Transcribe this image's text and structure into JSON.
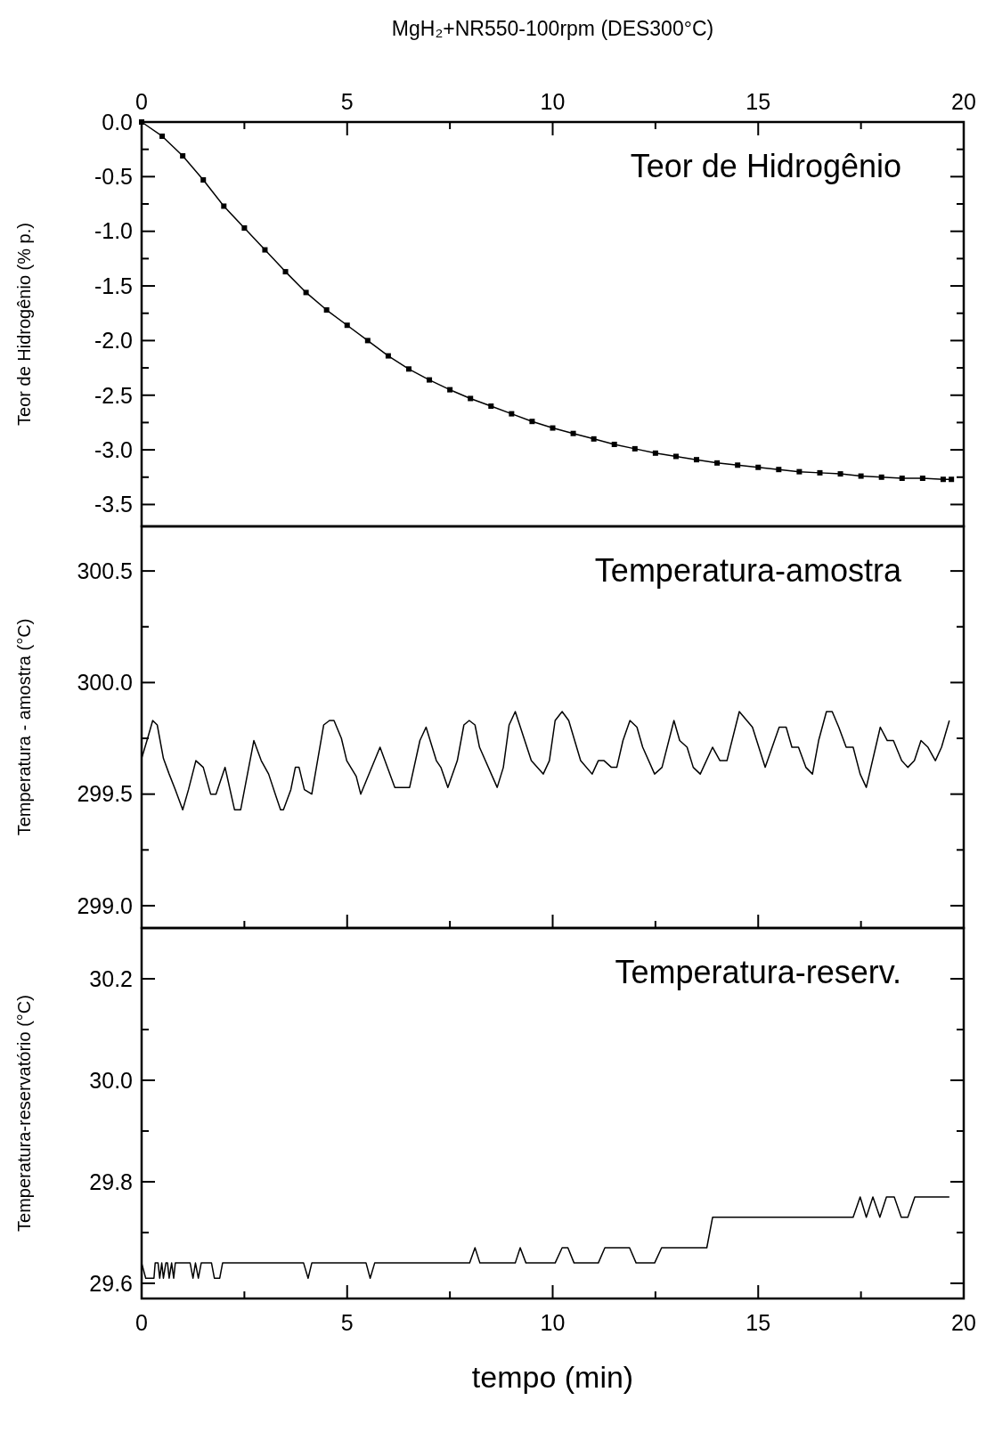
{
  "chart_data": [
    {
      "type": "line",
      "title": "MgH₂+NR550-100rpm (DES300°C)",
      "ylabel": "Teor de Hidrogênio (% p.)",
      "annotations": [
        "Teor de Hidrogênio"
      ],
      "marker": "square",
      "tick_labels": "y",
      "xlim": [
        0,
        20
      ],
      "x2lim": [
        0,
        20
      ],
      "x2ticks": [
        0,
        {
          "value": 2.5,
          "label": null
        },
        5,
        {
          "value": 7.5,
          "label": null
        },
        10,
        {
          "value": 12.5,
          "label": null
        },
        15,
        {
          "value": 17.5,
          "label": null
        },
        20
      ],
      "ylim": [
        -3.7,
        0
      ],
      "yticks": [
        {
          "value": 0,
          "label": "0.0"
        },
        {
          "value": -0.25,
          "label": null
        },
        -0.5,
        {
          "value": -0.75,
          "label": null
        },
        {
          "value": -1,
          "label": "-1.0"
        },
        {
          "value": -1.25,
          "label": null
        },
        -1.5,
        {
          "value": -1.75,
          "label": null
        },
        {
          "value": -2,
          "label": "-2.0"
        },
        {
          "value": -2.25,
          "label": null
        },
        -2.5,
        {
          "value": -2.75,
          "label": null
        },
        {
          "value": -3,
          "label": "-3.0"
        },
        {
          "value": -3.25,
          "label": null
        },
        -3.5
      ],
      "series": [
        {
          "color": "#000000",
          "x": [
            0,
            0.5,
            1,
            1.5,
            2,
            2.5,
            3,
            3.5,
            4,
            4.5,
            5,
            5.5,
            6,
            6.5,
            7,
            7.5,
            8,
            8.5,
            9,
            9.5,
            10,
            10.5,
            11,
            11.5,
            12,
            12.5,
            13,
            13.5,
            14,
            14.5,
            15,
            15.5,
            16,
            16.5,
            17,
            17.5,
            18,
            18.5,
            19,
            19.5,
            19.7
          ],
          "values": [
            0,
            -0.13,
            -0.31,
            -0.53,
            -0.77,
            -0.97,
            -1.17,
            -1.37,
            -1.56,
            -1.72,
            -1.86,
            -2.0,
            -2.14,
            -2.26,
            -2.36,
            -2.45,
            -2.53,
            -2.6,
            -2.67,
            -2.74,
            -2.8,
            -2.85,
            -2.9,
            -2.95,
            -2.99,
            -3.03,
            -3.06,
            -3.09,
            -3.12,
            -3.14,
            -3.16,
            -3.18,
            -3.2,
            -3.21,
            -3.22,
            -3.24,
            -3.25,
            -3.26,
            -3.26,
            -3.27,
            -3.27
          ]
        }
      ]
    },
    {
      "type": "line",
      "ylabel": "Temperatura - amostra (°C)",
      "annotations": [
        "Temperatura-amostra"
      ],
      "tick_labels": "y",
      "xlim": [
        0,
        20
      ],
      "xticks": [
        0,
        {
          "value": 2.5,
          "label": null
        },
        5,
        {
          "value": 7.5,
          "label": null
        },
        10,
        {
          "value": 12.5,
          "label": null
        },
        15,
        {
          "value": 17.5,
          "label": null
        },
        20
      ],
      "ylim": [
        298.9,
        300.7
      ],
      "yticks": [
        {
          "value": 299,
          "label": "299.0"
        },
        {
          "value": 299.25,
          "label": null
        },
        299.5,
        {
          "value": 299.75,
          "label": null
        },
        {
          "value": 300,
          "label": "300.0"
        },
        {
          "value": 300.25,
          "label": null
        },
        300.5
      ],
      "series": [
        {
          "color": "#000000",
          "x": [
            0,
            0.13,
            0.27,
            0.38,
            0.53,
            0.67,
            0.82,
            1.0,
            1.14,
            1.32,
            1.5,
            1.68,
            1.81,
            2.03,
            2.26,
            2.41,
            2.73,
            2.91,
            3.09,
            3.27,
            3.38,
            3.45,
            3.63,
            3.74,
            3.83,
            3.96,
            4.14,
            4.43,
            4.57,
            4.68,
            4.86,
            4.99,
            5.22,
            5.33,
            5.8,
            6.16,
            6.52,
            6.77,
            6.92,
            7.17,
            7.28,
            7.45,
            7.68,
            7.84,
            7.97,
            8.11,
            8.22,
            8.65,
            8.8,
            8.94,
            9.09,
            9.48,
            9.77,
            9.92,
            10.06,
            10.23,
            10.39,
            10.68,
            10.96,
            11.11,
            11.25,
            11.43,
            11.56,
            11.71,
            11.88,
            12.05,
            12.19,
            12.48,
            12.66,
            12.95,
            13.09,
            13.27,
            13.42,
            13.59,
            13.89,
            14.07,
            14.24,
            14.54,
            14.86,
            15.17,
            15.51,
            15.68,
            15.82,
            15.98,
            16.16,
            16.32,
            16.47,
            16.66,
            16.8,
            16.96,
            17.14,
            17.31,
            17.48,
            17.63,
            17.97,
            18.14,
            18.29,
            18.49,
            18.64,
            18.8,
            18.96,
            19.13,
            19.31,
            19.46,
            19.65
          ],
          "values": [
            299.66,
            299.74,
            299.83,
            299.81,
            299.66,
            299.59,
            299.52,
            299.43,
            299.52,
            299.65,
            299.62,
            299.5,
            299.5,
            299.62,
            299.43,
            299.43,
            299.74,
            299.65,
            299.59,
            299.49,
            299.43,
            299.43,
            299.52,
            299.62,
            299.62,
            299.52,
            299.5,
            299.81,
            299.83,
            299.83,
            299.75,
            299.65,
            299.58,
            299.5,
            299.71,
            299.53,
            299.53,
            299.74,
            299.8,
            299.65,
            299.62,
            299.53,
            299.65,
            299.81,
            299.83,
            299.81,
            299.71,
            299.53,
            299.62,
            299.81,
            299.87,
            299.65,
            299.59,
            299.65,
            299.83,
            299.87,
            299.83,
            299.65,
            299.59,
            299.65,
            299.65,
            299.62,
            299.62,
            299.74,
            299.83,
            299.8,
            299.71,
            299.59,
            299.62,
            299.83,
            299.74,
            299.71,
            299.62,
            299.59,
            299.71,
            299.65,
            299.65,
            299.87,
            299.8,
            299.62,
            299.8,
            299.8,
            299.71,
            299.71,
            299.62,
            299.59,
            299.74,
            299.87,
            299.87,
            299.8,
            299.71,
            299.71,
            299.59,
            299.53,
            299.8,
            299.74,
            299.74,
            299.65,
            299.62,
            299.65,
            299.74,
            299.71,
            299.65,
            299.71,
            299.83
          ]
        }
      ]
    },
    {
      "type": "line",
      "ylabel": "Temperatura-reservatório (°C)",
      "xlabel": "tempo (min)",
      "annotations": [
        "Temperatura-reserv."
      ],
      "xlim": [
        0,
        20
      ],
      "xticks": [
        0,
        {
          "value": 2.5,
          "label": null
        },
        5,
        {
          "value": 7.5,
          "label": null
        },
        10,
        {
          "value": 12.5,
          "label": null
        },
        15,
        {
          "value": 17.5,
          "label": null
        },
        20
      ],
      "ylim": [
        29.57,
        30.3
      ],
      "yticks": [
        29.6,
        {
          "value": 29.7,
          "label": null
        },
        29.8,
        {
          "value": 29.9,
          "label": null
        },
        {
          "value": 30,
          "label": "30.0"
        },
        {
          "value": 30.1,
          "label": null
        },
        30.2
      ],
      "series": [
        {
          "color": "#000000",
          "x": [
            0,
            0.1,
            0.3,
            0.33,
            0.4,
            0.44,
            0.49,
            0.53,
            0.59,
            0.63,
            0.67,
            0.73,
            0.78,
            0.82,
            1.18,
            1.25,
            1.31,
            1.38,
            1.45,
            1.7,
            1.77,
            1.9,
            1.97,
            3.94,
            4.05,
            4.14,
            5.46,
            5.56,
            5.67,
            7.98,
            8.11,
            8.23,
            9.09,
            9.21,
            9.35,
            10.06,
            10.23,
            10.37,
            10.52,
            11.11,
            11.27,
            11.87,
            12.03,
            12.48,
            12.65,
            13.75,
            13.89,
            17.31,
            17.48,
            17.63,
            17.79,
            17.96,
            18.12,
            18.31,
            18.48,
            18.64,
            18.81,
            19.65
          ],
          "values": [
            29.64,
            29.61,
            29.61,
            29.64,
            29.64,
            29.61,
            29.64,
            29.61,
            29.64,
            29.64,
            29.61,
            29.64,
            29.61,
            29.64,
            29.64,
            29.61,
            29.64,
            29.61,
            29.64,
            29.64,
            29.61,
            29.61,
            29.64,
            29.64,
            29.61,
            29.64,
            29.64,
            29.61,
            29.64,
            29.64,
            29.67,
            29.64,
            29.64,
            29.67,
            29.64,
            29.64,
            29.67,
            29.67,
            29.64,
            29.64,
            29.67,
            29.67,
            29.64,
            29.64,
            29.67,
            29.67,
            29.73,
            29.73,
            29.77,
            29.73,
            29.77,
            29.73,
            29.77,
            29.77,
            29.73,
            29.73,
            29.77,
            29.77
          ]
        }
      ]
    }
  ]
}
